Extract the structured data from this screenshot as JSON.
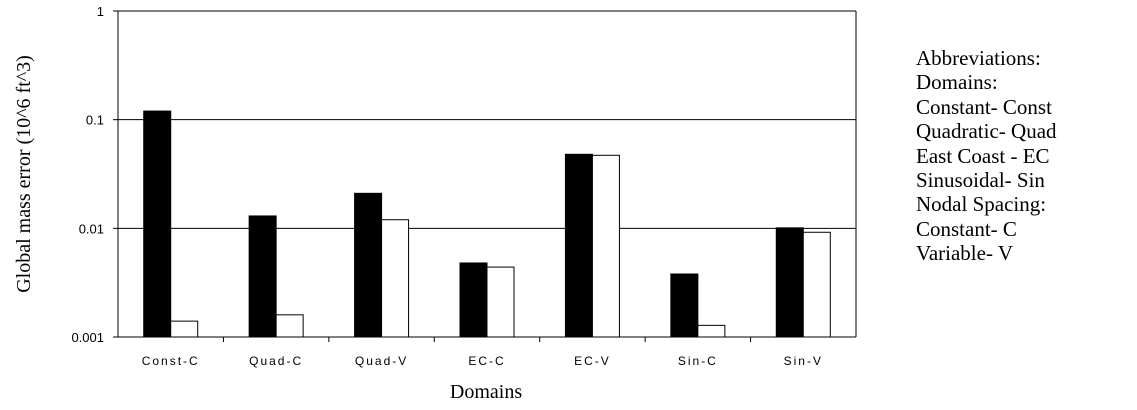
{
  "chart_data": {
    "type": "bar",
    "title": "",
    "xlabel": "Domains",
    "ylabel": "Global mass error (10^6 ft^3)",
    "yscale": "log",
    "ylim": [
      0.001,
      1
    ],
    "yticks": [
      "0.001",
      "0.01",
      "0.1",
      "1"
    ],
    "grid": "horizontal major lines",
    "categories": [
      "Const-C",
      "Quad-C",
      "Quad-V",
      "EC-C",
      "EC-V",
      "Sin-C",
      "Sin-V"
    ],
    "series": [
      {
        "fill": "#000000",
        "values": [
          0.12,
          0.013,
          0.021,
          0.0048,
          0.048,
          0.0038,
          0.0101
        ]
      },
      {
        "fill": "#ffffff",
        "values": [
          0.0014,
          0.0016,
          0.012,
          0.0044,
          0.047,
          0.00128,
          0.0092
        ]
      }
    ]
  },
  "annotation": {
    "lines": [
      "Abbreviations:",
      "Domains:",
      "Constant- Const",
      "Quadratic- Quad",
      "East Coast - EC",
      "Sinusoidal- Sin",
      "Nodal Spacing:",
      "Constant- C",
      "Variable- V"
    ]
  }
}
